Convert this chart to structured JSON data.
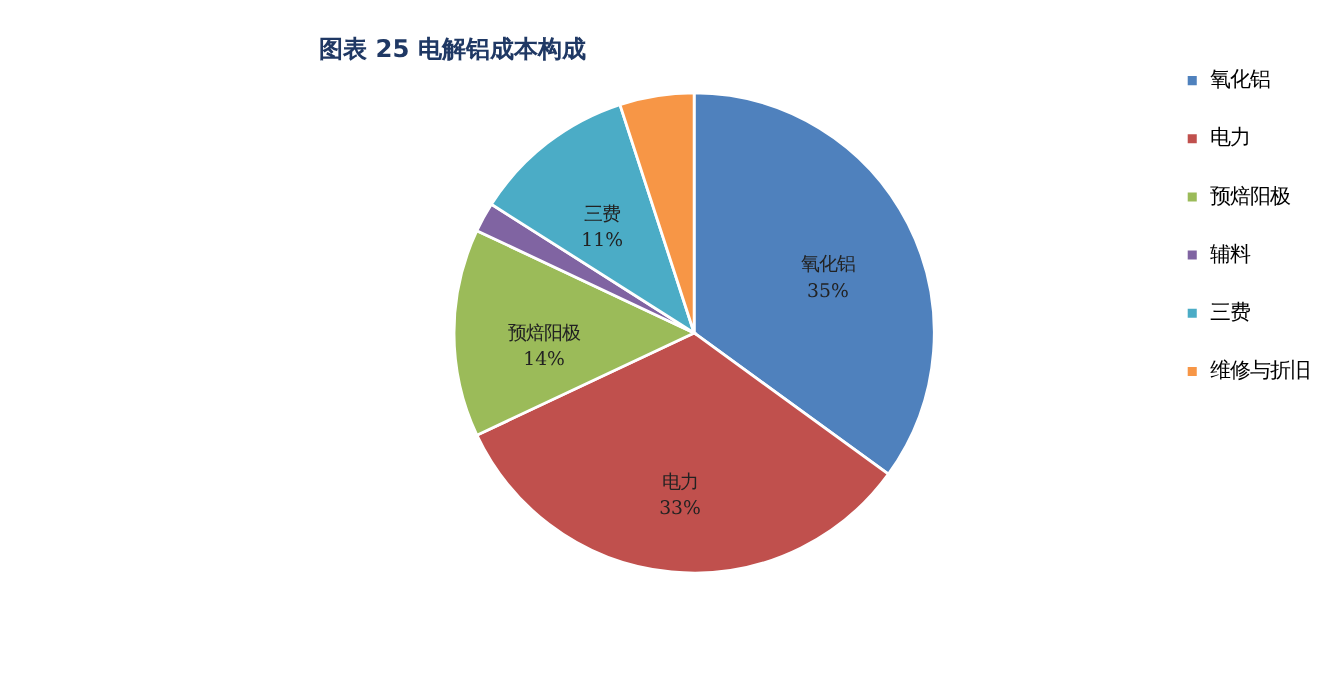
{
  "chart_data": {
    "type": "pie",
    "title": "图表 25    电解铝成本构成",
    "categories": [
      "氧化铝",
      "电力",
      "预焙阳极",
      "辅料",
      "三费",
      "维修与折旧"
    ],
    "values": [
      35,
      33,
      14,
      2,
      11,
      5
    ],
    "colors": [
      "#4f81bd",
      "#c0504d",
      "#9bbb59",
      "#8064a2",
      "#4bacc6",
      "#f79646"
    ],
    "value_labels": [
      "35%",
      "33%",
      "14%",
      null,
      "11%",
      null
    ],
    "legend": "right"
  }
}
